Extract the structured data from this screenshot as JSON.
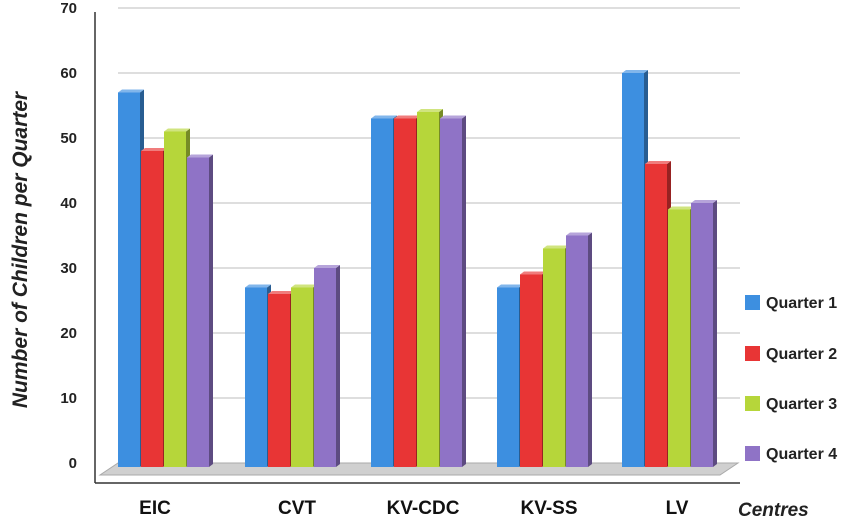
{
  "chart_data": {
    "type": "bar",
    "ylabel": "Number of Children per Quarter",
    "xlabel": "Centres",
    "ylim": [
      0,
      70
    ],
    "yticks": [
      0,
      10,
      20,
      30,
      40,
      50,
      60,
      70
    ],
    "grid": true,
    "legend_position": "right",
    "categories": [
      "EIC",
      "CVT",
      "KV-CDC",
      "KV-SS",
      "LV"
    ],
    "series": [
      {
        "name": "Quarter 1",
        "color": "#3d8fe0",
        "values": [
          57,
          27,
          53,
          27,
          60
        ]
      },
      {
        "name": "Quarter 2",
        "color": "#e83535",
        "values": [
          48,
          26,
          53,
          29,
          46
        ]
      },
      {
        "name": "Quarter 3",
        "color": "#b6d63a",
        "values": [
          51,
          27,
          54,
          33,
          39
        ]
      },
      {
        "name": "Quarter 4",
        "color": "#8f73c6",
        "values": [
          47,
          30,
          53,
          35,
          40
        ]
      }
    ]
  }
}
